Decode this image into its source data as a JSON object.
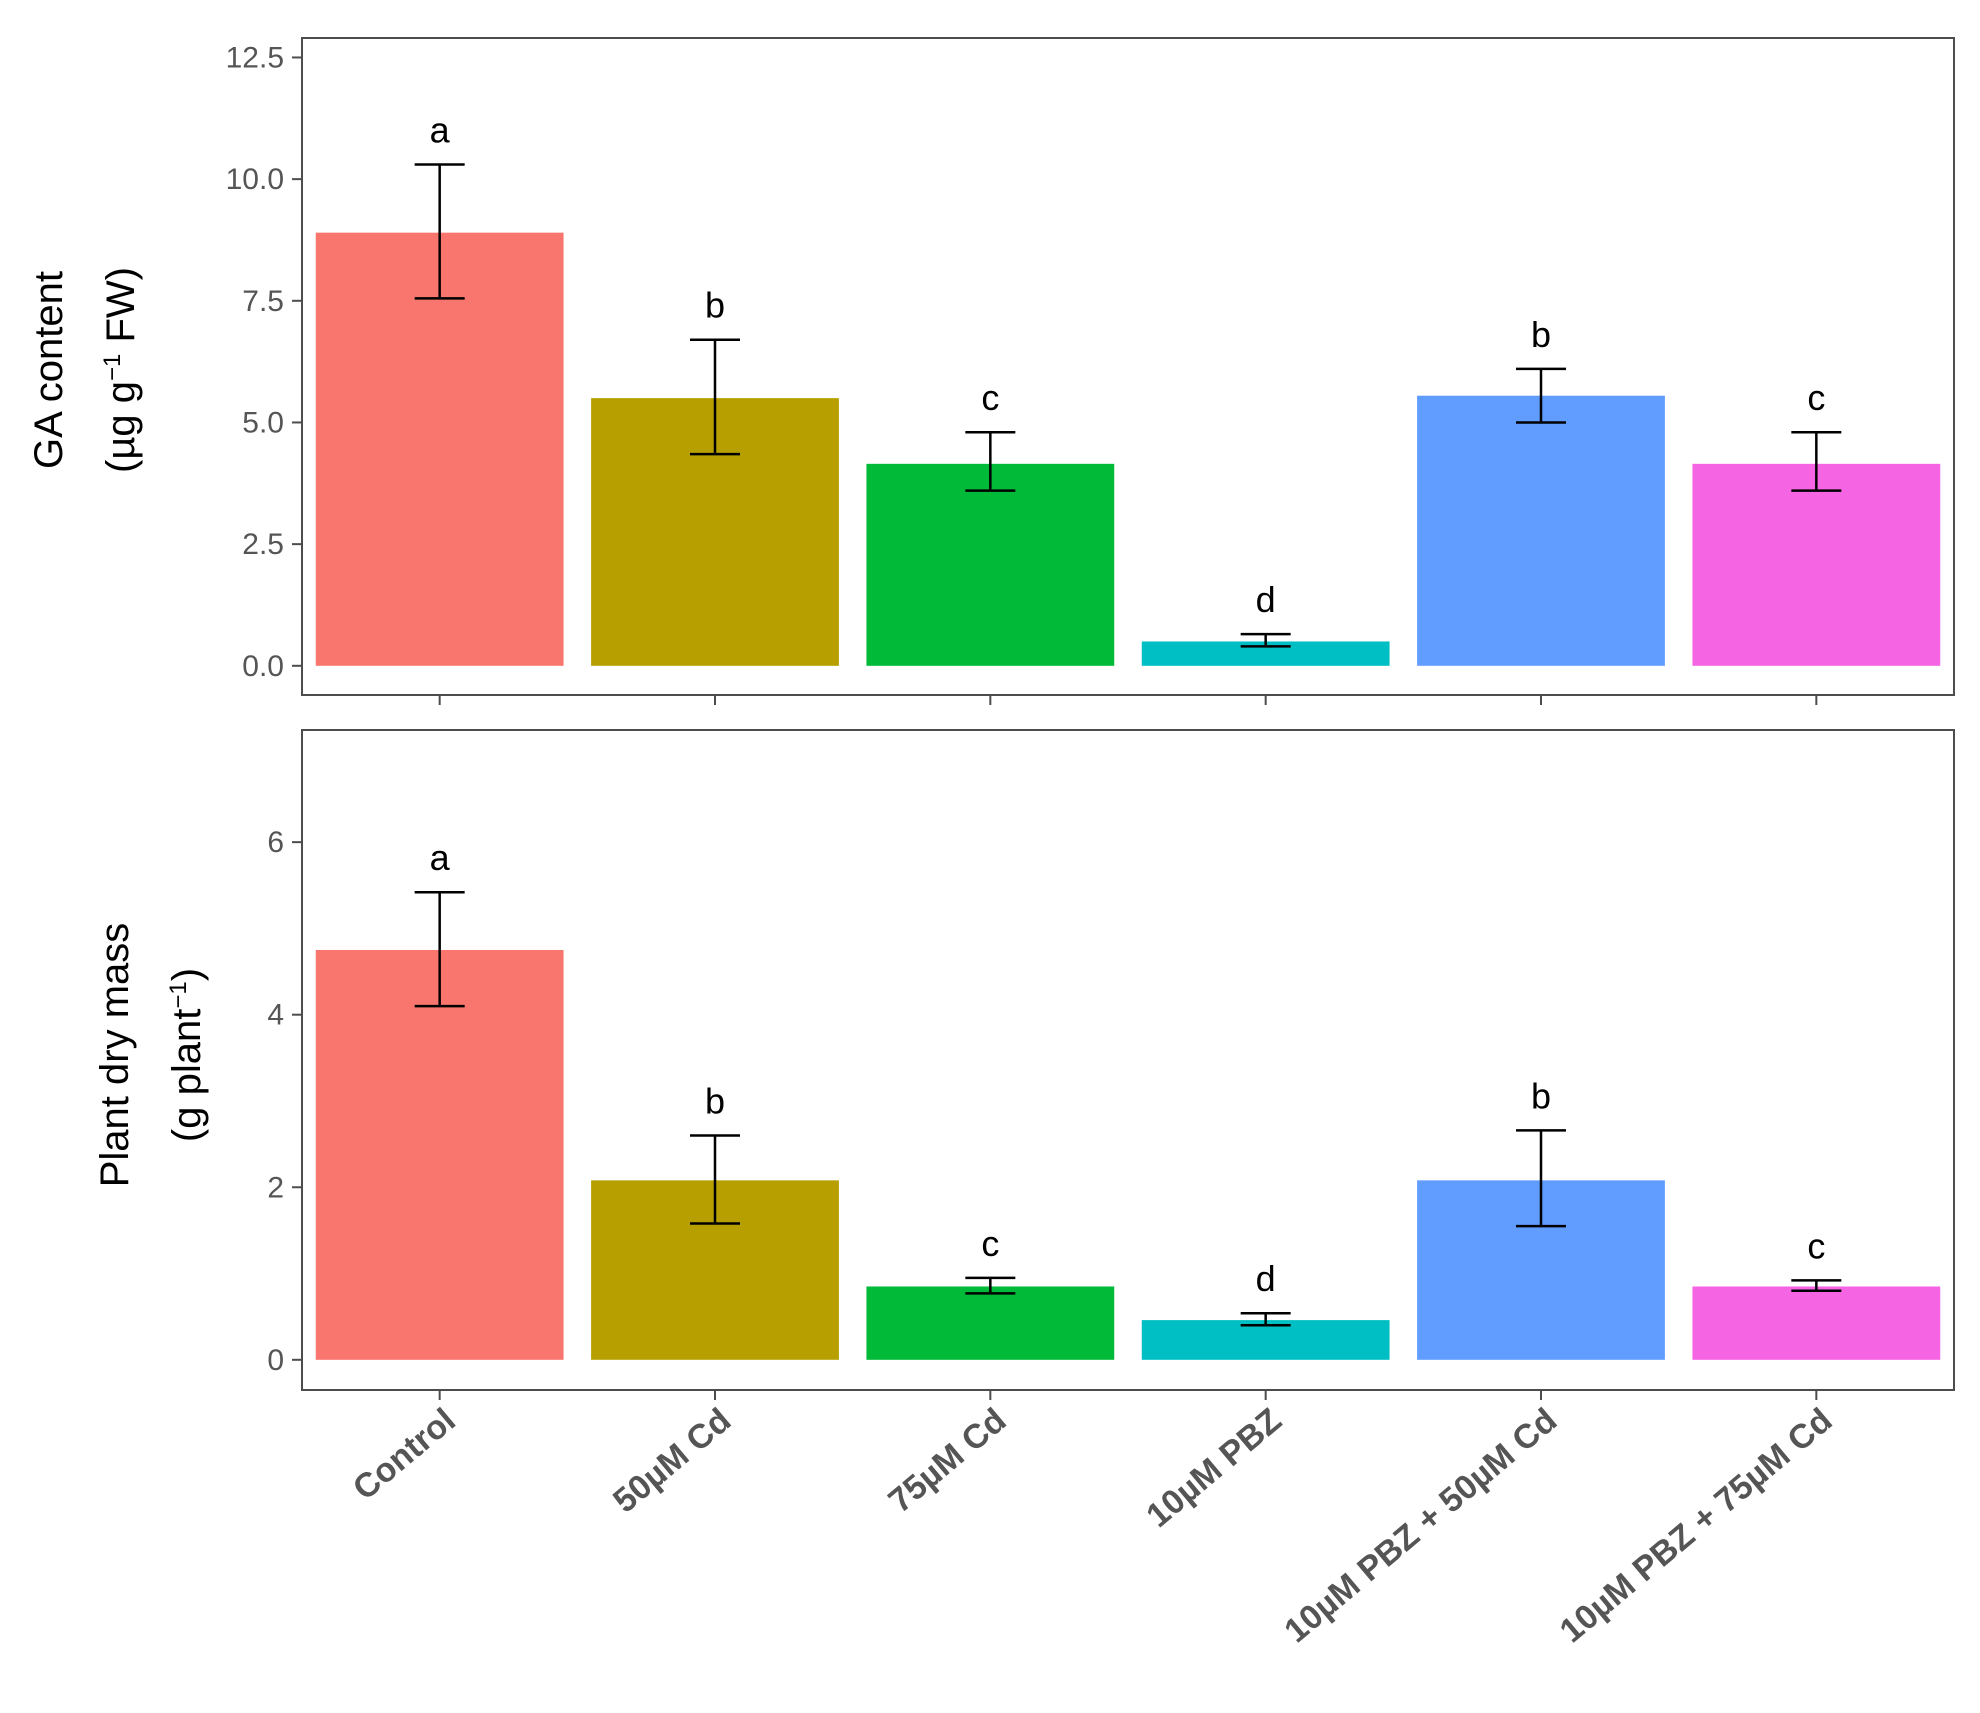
{
  "chart_data": [
    {
      "type": "bar",
      "categories": [
        "Control",
        "50µM Cd",
        "75µM Cd",
        "10µM PBZ",
        "10µM PBZ + 50µM Cd",
        "10µM PBZ + 75µM Cd"
      ],
      "values": [
        8.9,
        5.5,
        4.15,
        0.5,
        5.55,
        4.15
      ],
      "error_low": [
        7.55,
        4.35,
        3.6,
        0.4,
        5.0,
        3.6
      ],
      "error_high": [
        10.3,
        6.7,
        4.8,
        0.65,
        6.1,
        4.8
      ],
      "significance": [
        "a",
        "b",
        "c",
        "d",
        "b",
        "c"
      ],
      "colors": [
        "#F8766D",
        "#B79F00",
        "#00BA38",
        "#00BFC4",
        "#619CFF",
        "#F564E3"
      ],
      "ylabel_line1": "GA content",
      "ylabel_line2_pre": "(µg g",
      "ylabel_line2_sup": "−1",
      "ylabel_line2_post": " FW)",
      "ylim": [
        -0.6,
        12.9
      ],
      "yticks": [
        0.0,
        2.5,
        5.0,
        7.5,
        10.0,
        12.5
      ],
      "ytick_labels": [
        "0.0",
        "2.5",
        "5.0",
        "7.5",
        "10.0",
        "12.5"
      ],
      "grid": false
    },
    {
      "type": "bar",
      "categories": [
        "Control",
        "50µM Cd",
        "75µM Cd",
        "10µM PBZ",
        "10µM PBZ + 50µM Cd",
        "10µM PBZ + 75µM Cd"
      ],
      "values": [
        4.75,
        2.08,
        0.85,
        0.46,
        2.08,
        0.85
      ],
      "error_low": [
        4.1,
        1.58,
        0.77,
        0.4,
        1.55,
        0.8
      ],
      "error_high": [
        5.42,
        2.6,
        0.95,
        0.54,
        2.66,
        0.92
      ],
      "significance": [
        "a",
        "b",
        "c",
        "d",
        "b",
        "c"
      ],
      "colors": [
        "#F8766D",
        "#B79F00",
        "#00BA38",
        "#00BFC4",
        "#619CFF",
        "#F564E3"
      ],
      "ylabel_line1": "Plant dry mass",
      "ylabel_line2_pre": "(g plant",
      "ylabel_line2_sup": "−1",
      "ylabel_line2_post": ")",
      "ylim": [
        -0.35,
        7.3
      ],
      "yticks": [
        0,
        2,
        4,
        6
      ],
      "ytick_labels": [
        "0",
        "2",
        "4",
        "6"
      ],
      "grid": false
    }
  ]
}
